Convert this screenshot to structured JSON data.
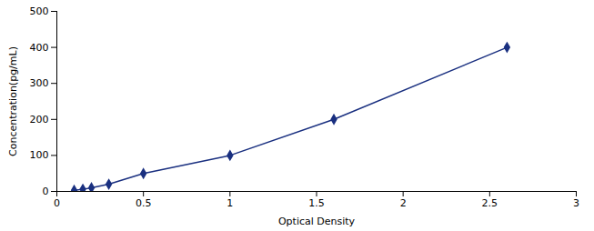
{
  "chart_data": {
    "type": "line",
    "x": [
      0.1,
      0.15,
      0.2,
      0.3,
      0.5,
      1.0,
      1.6,
      2.6
    ],
    "values": [
      3,
      6,
      10,
      20,
      50,
      100,
      200,
      400
    ],
    "color": "#1a3080",
    "marker": "diamond",
    "xlabel": "Optical Density",
    "ylabel": "Concentration(pg/mL)",
    "xlim": [
      0,
      3
    ],
    "ylim": [
      0,
      500
    ],
    "xticks": [
      0,
      0.5,
      1,
      1.5,
      2,
      2.5,
      3
    ],
    "yticks": [
      0,
      100,
      200,
      300,
      400,
      500
    ],
    "grid": false
  }
}
